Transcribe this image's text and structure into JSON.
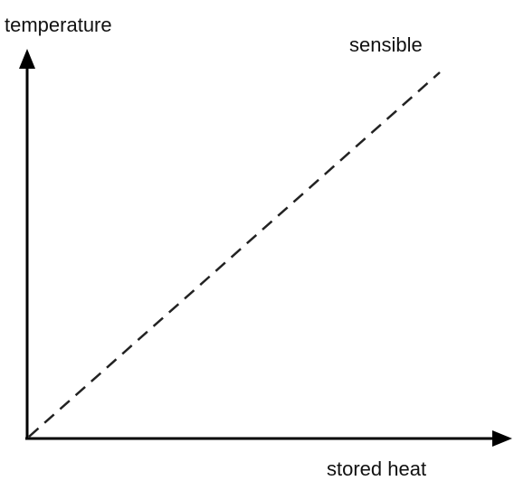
{
  "axes": {
    "y_label": "temperature",
    "x_label": "stored heat"
  },
  "lines": [
    {
      "label": "sensible"
    }
  ]
}
